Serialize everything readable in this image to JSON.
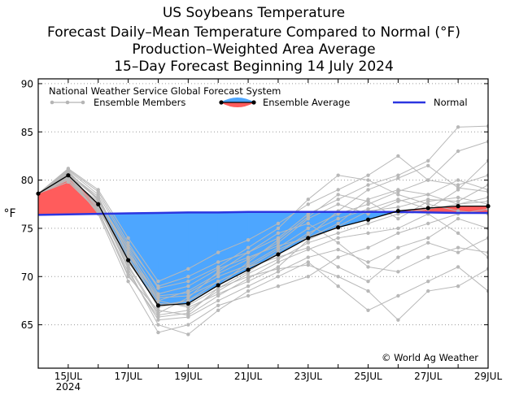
{
  "chart_data": {
    "type": "line",
    "title_lines": [
      "US Soybeans Temperature",
      "Forecast Daily–Mean Temperature Compared to Normal (°F)",
      "Production–Weighted Area Average",
      "15–Day Forecast Beginning 14 July 2024"
    ],
    "ylabel": "°F",
    "ylim": [
      60.5,
      90.5
    ],
    "xlim": [
      14,
      29
    ],
    "yticks": [
      65,
      70,
      75,
      80,
      85,
      90
    ],
    "ytick_labels": [
      "65",
      "70",
      "75",
      "80",
      "85",
      "90"
    ],
    "xticks": [
      15,
      17,
      19,
      21,
      23,
      25,
      27,
      29
    ],
    "xtick_labels": [
      "15JUL",
      "17JUL",
      "19JUL",
      "21JUL",
      "23JUL",
      "25JUL",
      "27JUL",
      "29JUL"
    ],
    "xtick_sublabel": "2024",
    "grid": "horizontal-dotted",
    "legend": {
      "title": "National Weather Service Global Forecast System",
      "members_label": "Ensemble Members",
      "average_label": "Ensemble Average",
      "normal_label": "Normal"
    },
    "annotation": "© World Ag Weather",
    "x": [
      14,
      15,
      16,
      17,
      18,
      19,
      20,
      21,
      22,
      23,
      24,
      25,
      26,
      27,
      28,
      29
    ],
    "series": [
      {
        "name": "Ensemble Average",
        "values": [
          78.6,
          80.5,
          77.5,
          71.7,
          67.0,
          67.2,
          69.1,
          70.7,
          72.3,
          74.0,
          75.1,
          75.9,
          76.8,
          77.1,
          77.3,
          77.3
        ]
      },
      {
        "name": "Normal",
        "values": [
          76.4,
          76.45,
          76.5,
          76.55,
          76.6,
          76.65,
          76.65,
          76.7,
          76.7,
          76.7,
          76.7,
          76.7,
          76.7,
          76.65,
          76.6,
          76.6
        ]
      }
    ],
    "ensemble_members": [
      [
        78.6,
        80.8,
        77.2,
        71.0,
        66.0,
        66.5,
        68.5,
        70.3,
        71.8,
        73.5,
        74.5,
        75.5,
        76.5,
        77.0,
        77.5,
        77.8
      ],
      [
        78.6,
        80.2,
        77.8,
        72.5,
        68.0,
        68.3,
        70.0,
        71.2,
        73.0,
        75.0,
        76.5,
        77.5,
        78.8,
        80.0,
        79.5,
        80.5
      ],
      [
        78.6,
        81.0,
        78.5,
        73.2,
        69.0,
        70.0,
        71.5,
        72.5,
        74.0,
        76.5,
        78.0,
        79.5,
        80.5,
        82.0,
        85.5,
        85.6
      ],
      [
        78.6,
        79.8,
        76.8,
        70.5,
        65.5,
        65.8,
        67.5,
        69.0,
        70.5,
        72.0,
        72.8,
        71.5,
        73.0,
        74.0,
        76.0,
        75.0
      ],
      [
        78.6,
        80.5,
        77.0,
        71.5,
        67.2,
        67.0,
        68.8,
        70.5,
        72.5,
        74.5,
        76.0,
        77.0,
        78.0,
        77.0,
        79.0,
        82.0
      ],
      [
        78.6,
        80.3,
        77.6,
        72.0,
        66.8,
        67.5,
        69.5,
        71.0,
        72.0,
        73.0,
        71.0,
        69.5,
        72.0,
        73.5,
        72.5,
        74.0
      ],
      [
        78.6,
        81.2,
        79.0,
        74.0,
        69.5,
        70.8,
        72.5,
        73.8,
        75.5,
        77.5,
        79.0,
        80.5,
        82.5,
        80.0,
        83.0,
        84.0
      ],
      [
        78.6,
        80.0,
        77.3,
        70.8,
        65.0,
        64.0,
        66.5,
        68.5,
        70.0,
        71.5,
        69.0,
        66.5,
        68.0,
        69.5,
        71.0,
        68.5
      ],
      [
        78.6,
        80.6,
        78.0,
        72.8,
        67.5,
        68.5,
        70.3,
        71.8,
        73.5,
        76.0,
        77.5,
        76.5,
        77.8,
        78.5,
        77.5,
        78.2
      ],
      [
        78.6,
        80.4,
        76.5,
        69.5,
        64.2,
        65.0,
        67.0,
        68.0,
        69.0,
        70.0,
        72.0,
        73.0,
        74.5,
        75.5,
        76.5,
        77.0
      ],
      [
        78.6,
        80.9,
        77.9,
        73.0,
        68.2,
        69.0,
        70.8,
        72.0,
        73.2,
        74.0,
        75.5,
        78.0,
        79.0,
        78.5,
        80.0,
        79.0
      ],
      [
        78.6,
        80.1,
        76.9,
        70.0,
        66.5,
        66.0,
        68.0,
        69.8,
        71.5,
        72.8,
        74.0,
        74.5,
        75.0,
        76.5,
        74.5,
        72.0
      ],
      [
        78.6,
        80.7,
        78.3,
        72.2,
        67.8,
        68.0,
        69.5,
        71.0,
        72.8,
        74.2,
        76.8,
        79.0,
        80.2,
        81.5,
        79.2,
        78.8
      ],
      [
        78.6,
        80.5,
        77.4,
        71.2,
        66.2,
        67.8,
        70.5,
        72.5,
        74.5,
        75.5,
        73.5,
        71.0,
        70.5,
        72.0,
        73.0,
        72.5
      ],
      [
        78.6,
        81.1,
        78.8,
        73.5,
        68.8,
        69.5,
        71.0,
        73.0,
        75.0,
        78.0,
        80.5,
        80.0,
        78.5,
        77.5,
        76.8,
        76.5
      ],
      [
        78.6,
        80.3,
        77.1,
        71.8,
        67.5,
        66.8,
        68.2,
        69.5,
        71.0,
        73.8,
        75.2,
        76.8,
        77.2,
        78.0,
        77.8,
        79.5
      ],
      [
        78.6,
        80.0,
        76.7,
        70.2,
        65.8,
        66.2,
        68.8,
        70.0,
        70.8,
        71.2,
        70.0,
        68.5,
        65.5,
        68.5,
        69.0,
        70.8
      ],
      [
        78.6,
        80.8,
        78.1,
        72.5,
        67.0,
        67.5,
        69.0,
        71.5,
        73.8,
        76.2,
        78.5,
        77.8,
        76.0,
        77.8,
        78.2,
        77.5
      ]
    ]
  }
}
